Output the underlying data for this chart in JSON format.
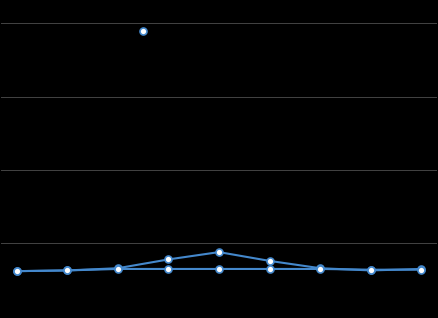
{
  "background_color": "#000000",
  "grid_color": "#444444",
  "line_color": "#4488cc",
  "marker_color_face": "#ffffff",
  "marker_color_edge": "#4488cc",
  "x_data": [
    0,
    1,
    2,
    3,
    4,
    5,
    6,
    7,
    8
  ],
  "y_line1": [
    62,
    63,
    66,
    78,
    88,
    76,
    66,
    63,
    65
  ],
  "y_line2": [
    62,
    63,
    65,
    65,
    65,
    65,
    65,
    64,
    64
  ],
  "y_outlier": 390,
  "x_outlier": 2.5,
  "ylim": [
    0,
    430
  ],
  "xlim": [
    -0.3,
    8.3
  ],
  "yticks": [
    0,
    100,
    200,
    300,
    400
  ],
  "show_yticklabels": false,
  "figsize": [
    4.38,
    3.18
  ],
  "dpi": 100
}
